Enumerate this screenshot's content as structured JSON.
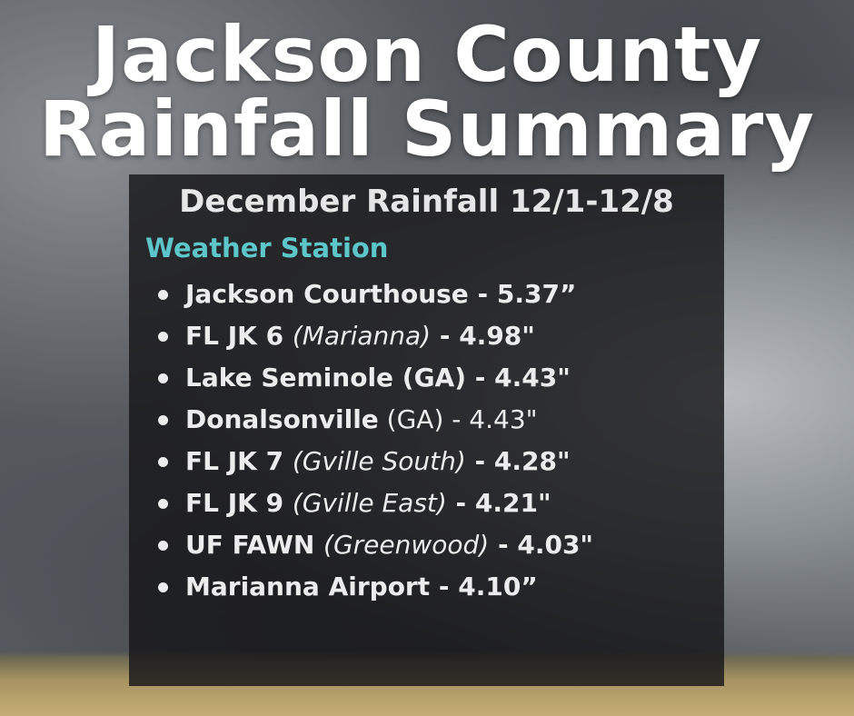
{
  "title": [
    "Jackson County",
    "Rainfall Summary"
  ],
  "subtitle": "December Rainfall 12/1-12/8",
  "list_header": "Weather Station",
  "stations": [
    {
      "parts": [
        {
          "text": "Jackson Courthouse - 5.37”",
          "style": "bold"
        }
      ]
    },
    {
      "parts": [
        {
          "text": "FL JK 6 ",
          "style": "bold"
        },
        {
          "text": "(Marianna)",
          "style": "italic"
        },
        {
          "text": " - 4.98\"",
          "style": "bold"
        }
      ]
    },
    {
      "parts": [
        {
          "text": "Lake Seminole (GA) - 4.43\"",
          "style": "bold"
        }
      ]
    },
    {
      "parts": [
        {
          "text": "Donalsonville",
          "style": "bold"
        },
        {
          "text": " (GA) - 4.43\"",
          "style": "regular"
        }
      ]
    },
    {
      "parts": [
        {
          "text": "FL JK 7 ",
          "style": "bold"
        },
        {
          "text": "(Gville South)",
          "style": "italic"
        },
        {
          "text": " - 4.28\"",
          "style": "bold"
        }
      ]
    },
    {
      "parts": [
        {
          "text": "FL JK 9 ",
          "style": "bold"
        },
        {
          "text": "(Gville East)",
          "style": "italic"
        },
        {
          "text": " - 4.21\"",
          "style": "bold"
        }
      ]
    },
    {
      "parts": [
        {
          "text": "UF FAWN ",
          "style": "bold"
        },
        {
          "text": "(Greenwood)",
          "style": "italic"
        },
        {
          "text": " - 4.03\"",
          "style": "bold"
        }
      ]
    },
    {
      "parts": [
        {
          "text": "Marianna Airport - 4.10”",
          "style": "bold"
        }
      ]
    }
  ]
}
